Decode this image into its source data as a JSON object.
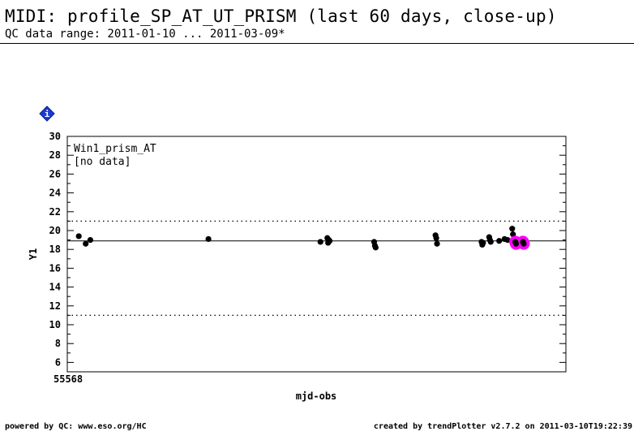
{
  "header": {
    "title": "MIDI: profile_SP_AT_UT_PRISM (last 60 days, close-up)",
    "subtitle": "QC data range: 2011-01-10 ... 2011-03-09*"
  },
  "icons": {
    "info": "info-diamond-icon"
  },
  "footer": {
    "left": "powered by QC: www.eso.org/HC",
    "right": "created by trendPlotter v2.7.2 on 2011-03-10T19:22:39"
  },
  "chart_data": {
    "type": "scatter",
    "panel_label": "Win1_prism_AT",
    "panel_note": "[no data]",
    "xlabel": "mjd-obs",
    "ylabel": "Y1",
    "x_start_label": "55568",
    "xlim": [
      55568,
      55633
    ],
    "ylim": [
      5,
      30
    ],
    "yticks_labeled": [
      6,
      8,
      10,
      12,
      14,
      16,
      18,
      20,
      22,
      24,
      26,
      28,
      30
    ],
    "reference_line": 18.9,
    "threshold_upper": 21,
    "threshold_lower": 11,
    "colors": {
      "points": "#000000",
      "highlight": "#ff00ff"
    },
    "series": [
      {
        "values": [
          {
            "x": 55569.5,
            "y": 19.4
          },
          {
            "x": 55570.4,
            "y": 18.6
          },
          {
            "x": 55571.0,
            "y": 19.0
          },
          {
            "x": 55586.4,
            "y": 19.1
          },
          {
            "x": 55601.0,
            "y": 18.8
          },
          {
            "x": 55601.9,
            "y": 19.2
          },
          {
            "x": 55602.0,
            "y": 18.7
          },
          {
            "x": 55602.1,
            "y": 19.0
          },
          {
            "x": 55602.2,
            "y": 18.9
          },
          {
            "x": 55608.0,
            "y": 18.8
          },
          {
            "x": 55608.1,
            "y": 18.4
          },
          {
            "x": 55608.2,
            "y": 18.2
          },
          {
            "x": 55616.0,
            "y": 19.5
          },
          {
            "x": 55616.1,
            "y": 19.2
          },
          {
            "x": 55616.2,
            "y": 18.6
          },
          {
            "x": 55622.0,
            "y": 18.8
          },
          {
            "x": 55622.1,
            "y": 18.5
          },
          {
            "x": 55622.2,
            "y": 18.7
          },
          {
            "x": 55623.0,
            "y": 19.3
          },
          {
            "x": 55623.1,
            "y": 19.0
          },
          {
            "x": 55623.2,
            "y": 18.8
          },
          {
            "x": 55624.3,
            "y": 18.9
          },
          {
            "x": 55625.0,
            "y": 19.1
          },
          {
            "x": 55625.4,
            "y": 19.0
          },
          {
            "x": 55626.0,
            "y": 20.2
          },
          {
            "x": 55626.1,
            "y": 19.6
          }
        ]
      },
      {
        "highlight": true,
        "values": [
          {
            "x": 55626.4,
            "y": 18.8
          },
          {
            "x": 55626.5,
            "y": 18.6
          },
          {
            "x": 55627.4,
            "y": 18.8
          },
          {
            "x": 55627.5,
            "y": 18.6
          }
        ]
      }
    ]
  }
}
